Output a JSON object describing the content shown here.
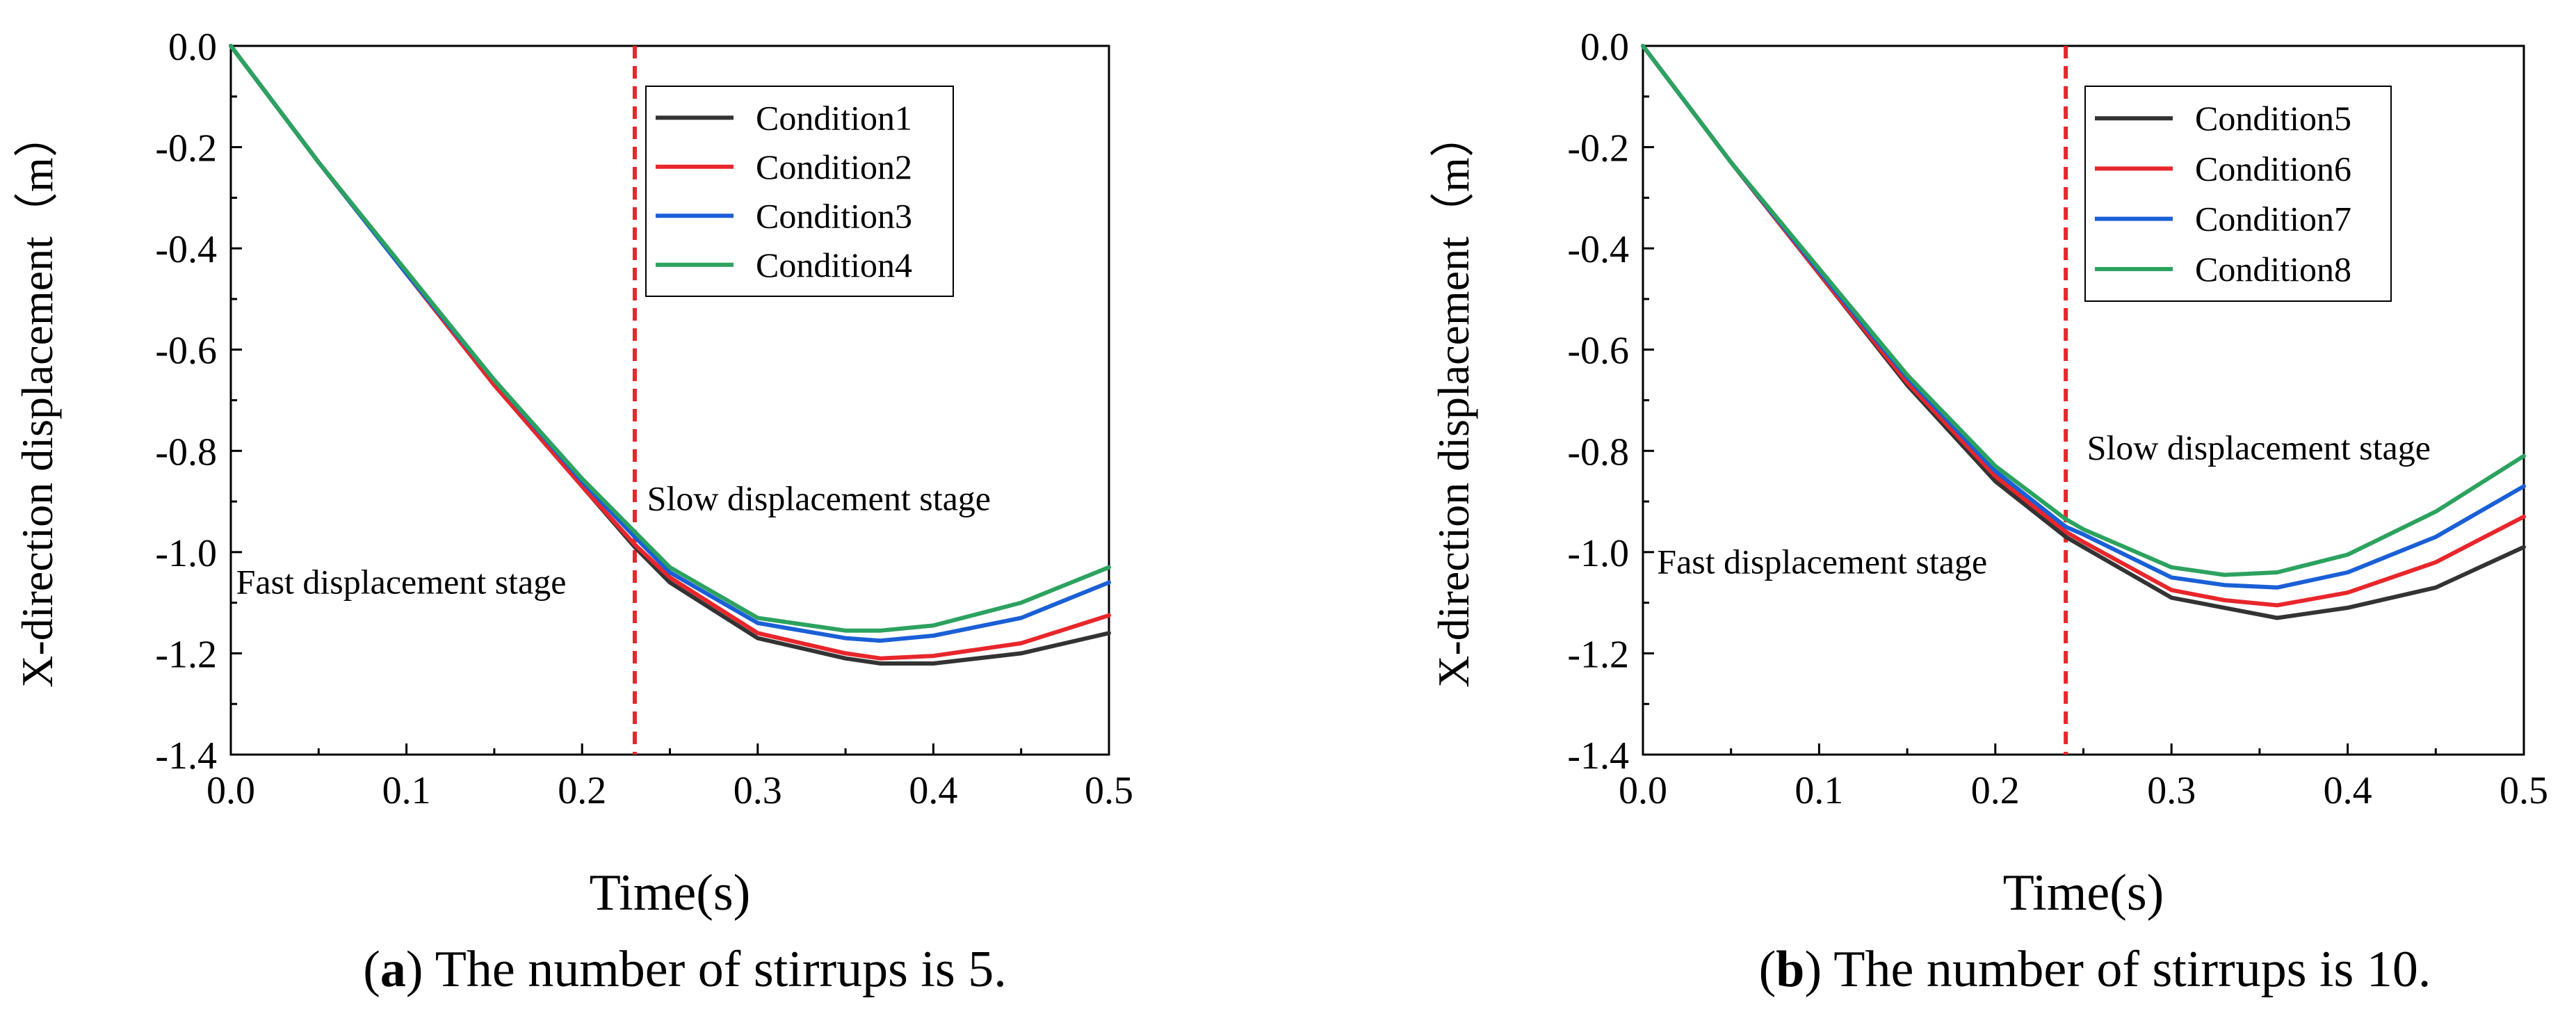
{
  "chart_data": [
    {
      "type": "line",
      "panel_label": "a",
      "caption": "The number of stirrups is 5.",
      "xlabel": "Time(s)",
      "ylabel": "X-direction displacement（m）",
      "xlim": [
        0,
        0.5
      ],
      "ylim": [
        -1.4,
        0
      ],
      "xticks": [
        "0.0",
        "0.1",
        "0.2",
        "0.3",
        "0.4",
        "0.5"
      ],
      "yticks": [
        "0.0",
        "-0.2",
        "-0.4",
        "-0.6",
        "-0.8",
        "-1.0",
        "-1.2",
        "-1.4"
      ],
      "x": [
        0,
        0.05,
        0.1,
        0.15,
        0.2,
        0.23,
        0.25,
        0.3,
        0.35,
        0.37,
        0.4,
        0.45,
        0.5
      ],
      "series": [
        {
          "name": "Condition1",
          "color": "#333333",
          "values": [
            0,
            -0.23,
            -0.45,
            -0.67,
            -0.87,
            -0.99,
            -1.06,
            -1.17,
            -1.21,
            -1.22,
            -1.22,
            -1.2,
            -1.16
          ]
        },
        {
          "name": "Condition2",
          "color": "#e8262b",
          "values": [
            0,
            -0.23,
            -0.45,
            -0.67,
            -0.87,
            -0.985,
            -1.05,
            -1.16,
            -1.2,
            -1.21,
            -1.205,
            -1.18,
            -1.125
          ]
        },
        {
          "name": "Condition3",
          "color": "#1a5fd6",
          "values": [
            0,
            -0.23,
            -0.45,
            -0.66,
            -0.86,
            -0.97,
            -1.04,
            -1.14,
            -1.17,
            -1.175,
            -1.165,
            -1.13,
            -1.06
          ]
        },
        {
          "name": "Condition4",
          "color": "#2ca25f",
          "values": [
            0,
            -0.23,
            -0.445,
            -0.66,
            -0.855,
            -0.96,
            -1.03,
            -1.13,
            -1.155,
            -1.155,
            -1.145,
            -1.1,
            -1.03
          ]
        }
      ],
      "vline_x": 0.23,
      "vline_color": "#e8262b",
      "annotations": [
        {
          "text": "Fast displacement stage",
          "x": 0.003,
          "y": -1.06
        },
        {
          "text": "Slow displacement stage",
          "x": 0.237,
          "y": -0.895
        }
      ],
      "legend": "top-right"
    },
    {
      "type": "line",
      "panel_label": "b",
      "caption": "The number of stirrups is 10.",
      "xlabel": "Time(s)",
      "ylabel": "X-direction displacement（m）",
      "xlim": [
        0,
        0.5
      ],
      "ylim": [
        -1.4,
        0
      ],
      "xticks": [
        "0.0",
        "0.1",
        "0.2",
        "0.3",
        "0.4",
        "0.5"
      ],
      "yticks": [
        "0.0",
        "-0.2",
        "-0.4",
        "-0.6",
        "-0.8",
        "-1.0",
        "-1.2",
        "-1.4"
      ],
      "x": [
        0,
        0.05,
        0.1,
        0.15,
        0.2,
        0.24,
        0.25,
        0.3,
        0.33,
        0.36,
        0.4,
        0.45,
        0.5
      ],
      "series": [
        {
          "name": "Condition5",
          "color": "#333333",
          "values": [
            0,
            -0.23,
            -0.45,
            -0.67,
            -0.86,
            -0.97,
            -0.99,
            -1.09,
            -1.11,
            -1.13,
            -1.11,
            -1.07,
            -0.99
          ]
        },
        {
          "name": "Condition6",
          "color": "#e8262b",
          "values": [
            0,
            -0.23,
            -0.45,
            -0.665,
            -0.85,
            -0.96,
            -0.98,
            -1.075,
            -1.095,
            -1.105,
            -1.08,
            -1.02,
            -0.93
          ]
        },
        {
          "name": "Condition7",
          "color": "#1a5fd6",
          "values": [
            0,
            -0.23,
            -0.445,
            -0.655,
            -0.84,
            -0.95,
            -0.965,
            -1.05,
            -1.065,
            -1.07,
            -1.04,
            -0.97,
            -0.87
          ]
        },
        {
          "name": "Condition8",
          "color": "#2ca25f",
          "values": [
            0,
            -0.23,
            -0.44,
            -0.65,
            -0.83,
            -0.935,
            -0.955,
            -1.03,
            -1.045,
            -1.04,
            -1.005,
            -0.92,
            -0.81
          ]
        }
      ],
      "vline_x": 0.24,
      "vline_color": "#e8262b",
      "annotations": [
        {
          "text": "Fast displacement stage",
          "x": 0.008,
          "y": -1.02
        },
        {
          "text": "Slow displacement stage",
          "x": 0.252,
          "y": -0.795
        }
      ],
      "legend": "top-right"
    }
  ]
}
